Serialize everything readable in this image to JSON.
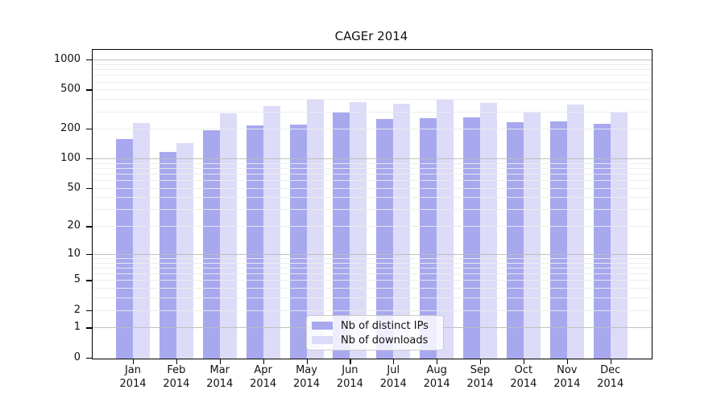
{
  "chart_data": {
    "type": "bar",
    "title": "CAGEr 2014",
    "categories": [
      "Jan",
      "Feb",
      "Mar",
      "Apr",
      "May",
      "Jun",
      "Jul",
      "Aug",
      "Sep",
      "Oct",
      "Nov",
      "Dec"
    ],
    "year": "2014",
    "series": [
      {
        "name": "Nb of distinct IPs",
        "color": "#a8a8ef",
        "values": [
          158,
          116,
          195,
          215,
          221,
          294,
          251,
          258,
          263,
          234,
          240,
          224
        ]
      },
      {
        "name": "Nb of downloads",
        "color": "#dcdcf8",
        "values": [
          230,
          143,
          288,
          341,
          405,
          374,
          362,
          394,
          368,
          300,
          352,
          293
        ]
      }
    ],
    "yscale": "log1p",
    "y_ticks": [
      0,
      1,
      2,
      5,
      10,
      20,
      50,
      100,
      200,
      500,
      1000
    ],
    "ylim": [
      0,
      1250
    ],
    "grid": "on",
    "legend_position": "lower center",
    "legend_labels": [
      "Nb of distinct IPs",
      "Nb of downloads"
    ],
    "colors": {
      "bar_dark": "#a8a8ef",
      "bar_light": "#dcdcf8",
      "grid_major": "#bcbcbc",
      "grid_minor": "#ececec",
      "axis": "#000000",
      "background": "#ffffff"
    }
  }
}
